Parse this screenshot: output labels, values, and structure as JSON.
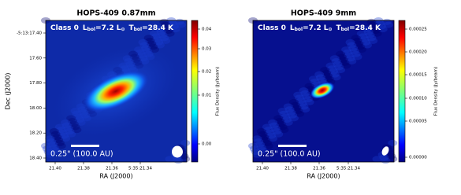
{
  "panels": [
    {
      "title": "HOPS-409 0.87mm",
      "annotation": {
        "class": "Class 0",
        "lum_symbol": "L",
        "lum_sub": "bol",
        "lum_value": "=7.2 L",
        "lum_sun": "⊙",
        "temp_symbol": "T",
        "temp_sub": "bol",
        "temp_value": "=28.4 K"
      },
      "scale_bar_label": "0.25\" (100.0 AU)",
      "x_label": "RA (J2000)",
      "y_label": "Dec (J2000)",
      "x_ticks": [
        "21.40",
        "21.38",
        "21.36",
        "5:35:21.34"
      ],
      "y_ticks": [
        "-5:13:17.40",
        "17.60",
        "17.80",
        "18.00",
        "18.20",
        "18.40"
      ],
      "colorbar_label": "Flux Density (Jy/beam)",
      "colorbar_ticks": [
        "0.04",
        "0.03",
        "0.02",
        "0.01",
        "0.00"
      ]
    },
    {
      "title": "HOPS-409 9mm",
      "annotation": {
        "class": "Class 0",
        "lum_symbol": "L",
        "lum_sub": "bol",
        "lum_value": "=7.2 L",
        "lum_sun": "⊙",
        "temp_symbol": "T",
        "temp_sub": "bol",
        "temp_value": "=28.4 K"
      },
      "scale_bar_label": "0.25\" (100.0 AU)",
      "x_label": "RA (J2000)",
      "x_ticks": [
        "21.40",
        "21.38",
        "21.36",
        "5:35:21.34"
      ],
      "colorbar_label": "Flux Density (Jy/beam)",
      "colorbar_ticks": [
        "0.00025",
        "0.00020",
        "0.00015",
        "0.00010",
        "0.00005",
        "0.00000"
      ]
    }
  ]
}
